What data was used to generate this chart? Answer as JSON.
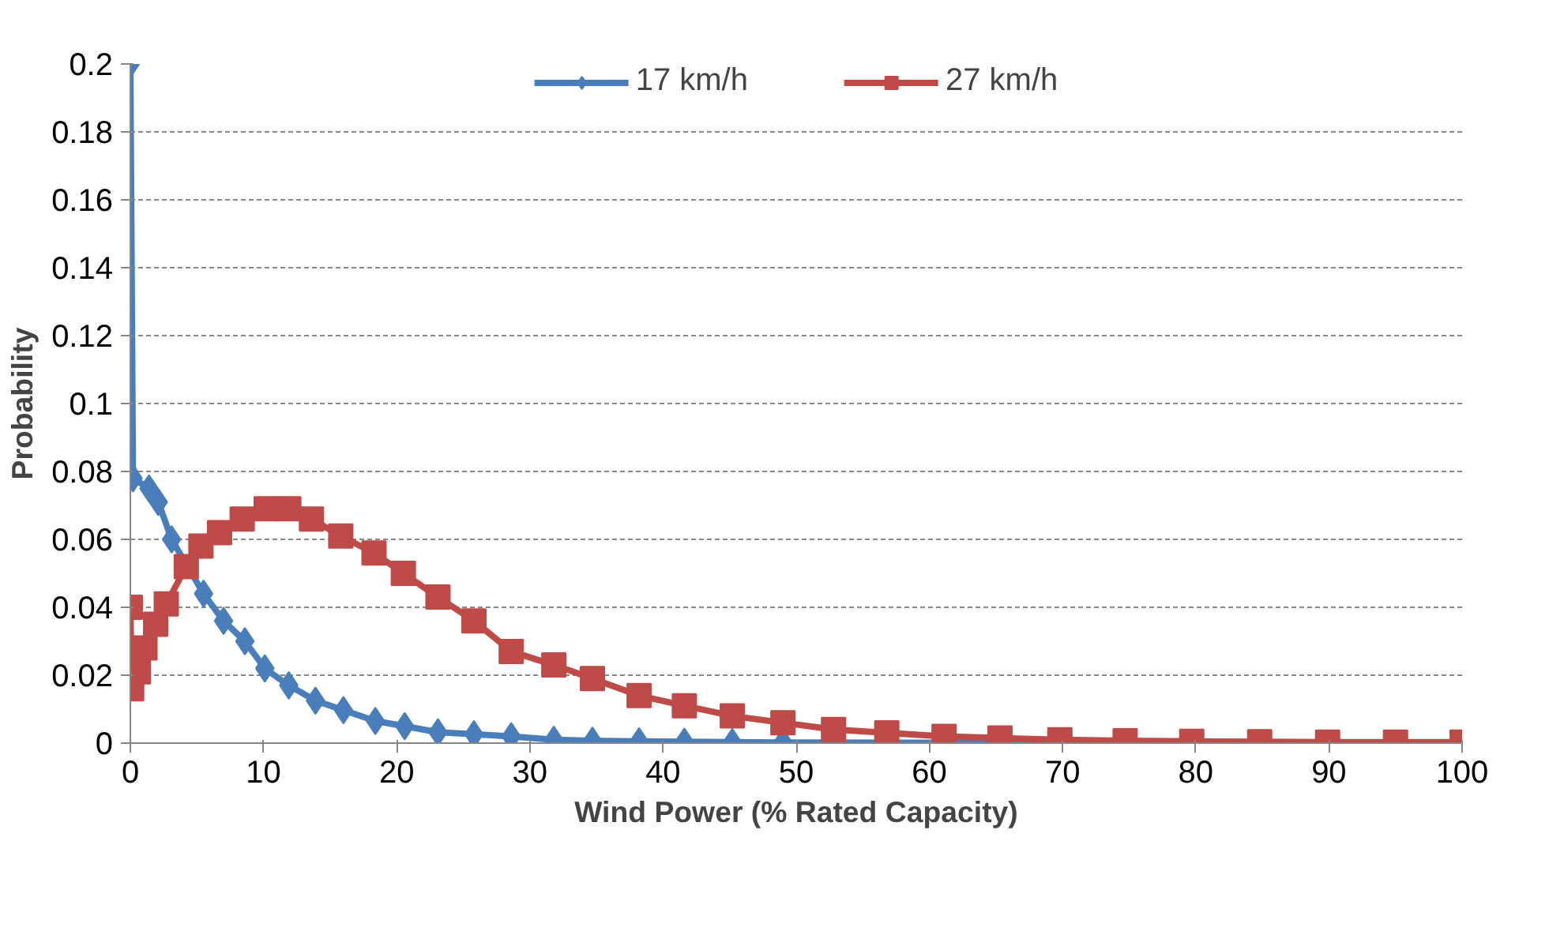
{
  "chart_data": {
    "type": "line",
    "xlabel": "Wind Power (% Rated Capacity)",
    "ylabel": "Probability",
    "xlim": [
      0,
      100
    ],
    "xticks": [
      0,
      10,
      20,
      30,
      40,
      50,
      60,
      70,
      80,
      90,
      100
    ],
    "ylim": [
      0,
      0.2
    ],
    "yticks": [
      0,
      0.02,
      0.04,
      0.06,
      0.08,
      0.1,
      0.12,
      0.14,
      0.16,
      0.18,
      0.2
    ],
    "grid": "y",
    "legend": "top",
    "line_style": "solid",
    "series": [
      {
        "name": "17 km/h",
        "color": "#4a7ebb",
        "marker": "diamond",
        "x": [
          0,
          0.2,
          1.4,
          2.1,
          3.1,
          5.5,
          7.0,
          8.6,
          10.1,
          11.9,
          13.9,
          16.0,
          18.4,
          20.6,
          23.1,
          25.8,
          28.6,
          31.8,
          34.7,
          38.2,
          41.6,
          45.2,
          49.0,
          52.8,
          56.8,
          61.1,
          65.3,
          69.8
        ],
        "values": [
          0.2,
          0.078,
          0.075,
          0.071,
          0.06,
          0.044,
          0.036,
          0.03,
          0.022,
          0.017,
          0.0125,
          0.0097,
          0.0065,
          0.005,
          0.0032,
          0.0026,
          0.002,
          0.001,
          0.0007,
          0.0005,
          0.0004,
          0.0003,
          0.0002,
          0.0002,
          0.0001,
          0.0001,
          0.0001,
          0.0001
        ]
      },
      {
        "name": "27 km/h",
        "color": "#be4b48",
        "marker": "square",
        "x": [
          0,
          0.1,
          0.6,
          1.1,
          1.9,
          2.7,
          4.2,
          5.3,
          6.7,
          8.4,
          10.2,
          11.9,
          13.6,
          15.8,
          18.3,
          20.5,
          23.1,
          25.8,
          28.6,
          31.8,
          34.7,
          38.2,
          41.6,
          45.2,
          49.0,
          52.8,
          56.8,
          61.1,
          65.3,
          69.8,
          74.7,
          79.7,
          84.8,
          89.9,
          95.0,
          100
        ],
        "values": [
          0.04,
          0.016,
          0.021,
          0.028,
          0.035,
          0.041,
          0.052,
          0.058,
          0.062,
          0.066,
          0.069,
          0.069,
          0.066,
          0.061,
          0.056,
          0.05,
          0.043,
          0.036,
          0.027,
          0.023,
          0.019,
          0.014,
          0.011,
          0.008,
          0.006,
          0.004,
          0.003,
          0.002,
          0.0015,
          0.001,
          0.0007,
          0.0005,
          0.0004,
          0.0003,
          0.0003,
          0.0003
        ]
      }
    ]
  }
}
